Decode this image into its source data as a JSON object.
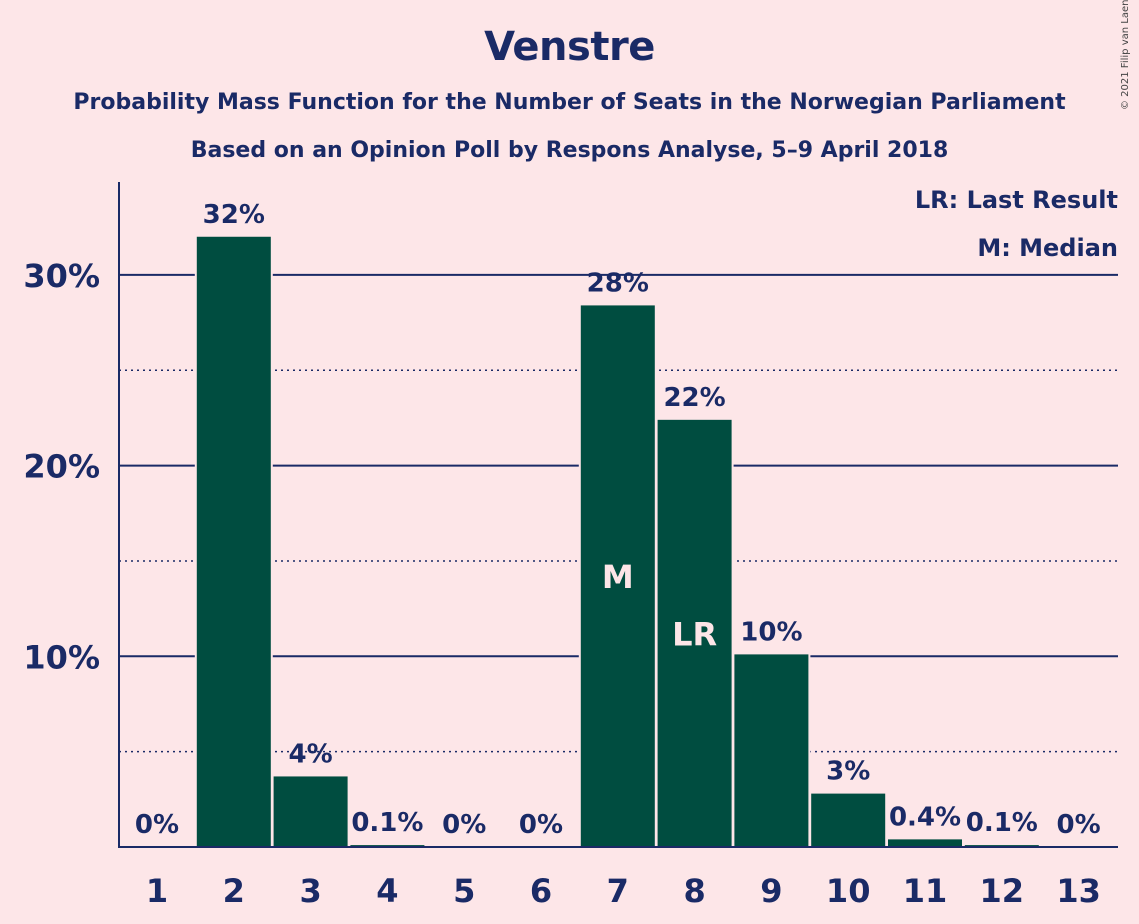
{
  "title": "Venstre",
  "subtitle": "Probability Mass Function for the Number of Seats in the Norwegian Parliament",
  "subtitle2": "Based on an Opinion Poll by Respons Analyse, 5–9 April 2018",
  "copyright": "© 2021 Filip van Laenen",
  "legend": {
    "last_result": "LR: Last Result",
    "median": "M: Median"
  },
  "colors": {
    "background": "#fde6e8",
    "bar": "#004d40",
    "text": "#1a2a66",
    "marker_text": "#fde6e8"
  },
  "chart_data": {
    "type": "bar",
    "categories": [
      "1",
      "2",
      "3",
      "4",
      "5",
      "6",
      "7",
      "8",
      "9",
      "10",
      "11",
      "12",
      "13"
    ],
    "values": [
      0,
      32,
      3.7,
      0.1,
      0,
      0,
      28.4,
      22.4,
      10.1,
      2.8,
      0.4,
      0.1,
      0
    ],
    "data_labels": [
      "0%",
      "32%",
      "4%",
      "0.1%",
      "0%",
      "0%",
      "28%",
      "22%",
      "10%",
      "3%",
      "0.4%",
      "0.1%",
      "0%"
    ],
    "markers": {
      "7": "M",
      "8": "LR"
    },
    "ylim": [
      0,
      35
    ],
    "yticks": [
      10,
      20,
      30
    ],
    "ytick_labels": [
      "10%",
      "20%",
      "30%"
    ],
    "minor_gridlines": [
      5,
      15,
      25
    ],
    "grid": true,
    "legend_position": "top-right"
  }
}
